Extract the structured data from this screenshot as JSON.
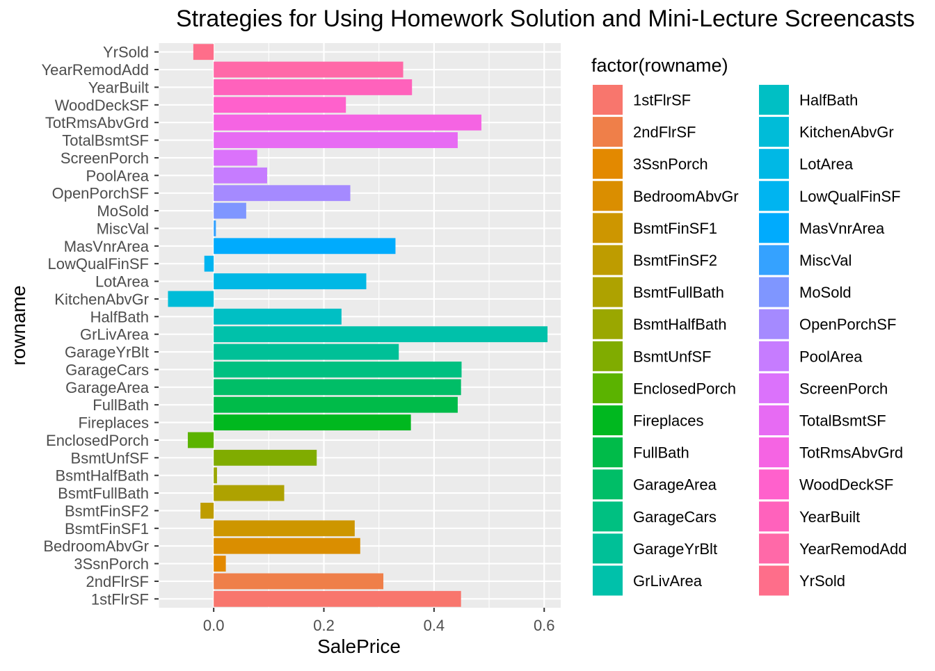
{
  "chart_data": {
    "type": "bar",
    "orientation": "horizontal",
    "title": "Strategies for Using Homework Solution and Mini-Lecture Screencasts",
    "xlabel": "SalePrice",
    "ylabel": "rowname",
    "xlim": [
      -0.1,
      0.63
    ],
    "xticks": [
      0.0,
      0.2,
      0.4,
      0.6
    ],
    "xtick_labels": [
      "0.0",
      "0.2",
      "0.4",
      "0.6"
    ],
    "grid": true,
    "legend": {
      "title": "factor(rowname)",
      "placement": "right",
      "columns": 2
    },
    "categories": [
      "1stFlrSF",
      "2ndFlrSF",
      "3SsnPorch",
      "BedroomAbvGr",
      "BsmtFinSF1",
      "BsmtFinSF2",
      "BsmtFullBath",
      "BsmtHalfBath",
      "BsmtUnfSF",
      "EnclosedPorch",
      "Fireplaces",
      "FullBath",
      "GarageArea",
      "GarageCars",
      "GarageYrBlt",
      "GrLivArea",
      "HalfBath",
      "KitchenAbvGr",
      "LotArea",
      "LowQualFinSF",
      "MasVnrArea",
      "MiscVal",
      "MoSold",
      "OpenPorchSF",
      "PoolArea",
      "ScreenPorch",
      "TotalBsmtSF",
      "TotRmsAbvGrd",
      "WoodDeckSF",
      "YearBuilt",
      "YearRemodAdd",
      "YrSold"
    ],
    "values": [
      0.449,
      0.308,
      0.022,
      0.266,
      0.256,
      -0.024,
      0.128,
      0.006,
      0.187,
      -0.047,
      0.358,
      0.443,
      0.449,
      0.45,
      0.336,
      0.606,
      0.232,
      -0.083,
      0.277,
      -0.017,
      0.33,
      0.004,
      0.059,
      0.248,
      0.097,
      0.079,
      0.443,
      0.486,
      0.24,
      0.36,
      0.344,
      -0.037
    ],
    "colors": [
      "#F8766D",
      "#EF7F49",
      "#E38900",
      "#DA8E00",
      "#CD9600",
      "#BE9C00",
      "#AEA200",
      "#9AA700",
      "#80AC00",
      "#5BB300",
      "#00B81F",
      "#00BB49",
      "#00BE67",
      "#00C081",
      "#00C097",
      "#00C1AA",
      "#00BFC4",
      "#00BCD8",
      "#00B8E5",
      "#00B4F0",
      "#00ABFD",
      "#35A2FF",
      "#7F96FF",
      "#A58AFF",
      "#C67CFF",
      "#DB72FB",
      "#E76BF3",
      "#F564E3",
      "#FF61CC",
      "#FF62BC",
      "#FF69A8",
      "#FE6E8A"
    ]
  }
}
